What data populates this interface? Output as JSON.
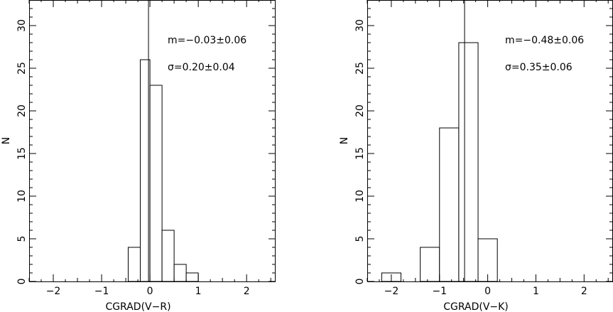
{
  "chart_data": [
    {
      "type": "bar",
      "xlabel": "CGRAD(V−R)",
      "ylabel": "N",
      "xlim": [
        -2.5,
        2.6
      ],
      "ylim": [
        0,
        33
      ],
      "xticks": [
        -2,
        -1,
        0,
        1,
        2
      ],
      "yticks": [
        0,
        5,
        10,
        15,
        20,
        25,
        30
      ],
      "bin_edges": [
        -0.45,
        -0.2,
        0.0,
        0.25,
        0.5,
        0.75,
        1.0
      ],
      "values": [
        4,
        26,
        23,
        6,
        2,
        1
      ],
      "mean_line": -0.03,
      "annotations": [
        "m=−0.03±0.06",
        "σ=0.20±0.04"
      ],
      "grid": false
    },
    {
      "type": "bar",
      "xlabel": "CGRAD(V−K)",
      "ylabel": "N",
      "xlim": [
        -2.5,
        2.6
      ],
      "ylim": [
        0,
        33
      ],
      "xticks": [
        -2,
        -1,
        0,
        1,
        2
      ],
      "yticks": [
        0,
        5,
        10,
        15,
        20,
        25,
        30
      ],
      "bin_edges": [
        -2.2,
        -1.8,
        -1.4,
        -1.0,
        -0.6,
        -0.2,
        0.2
      ],
      "values": [
        1,
        0,
        4,
        18,
        28,
        5
      ],
      "mean_line": -0.48,
      "annotations": [
        "m=−0.48±0.06",
        "σ=0.35±0.06"
      ],
      "grid": false
    }
  ]
}
